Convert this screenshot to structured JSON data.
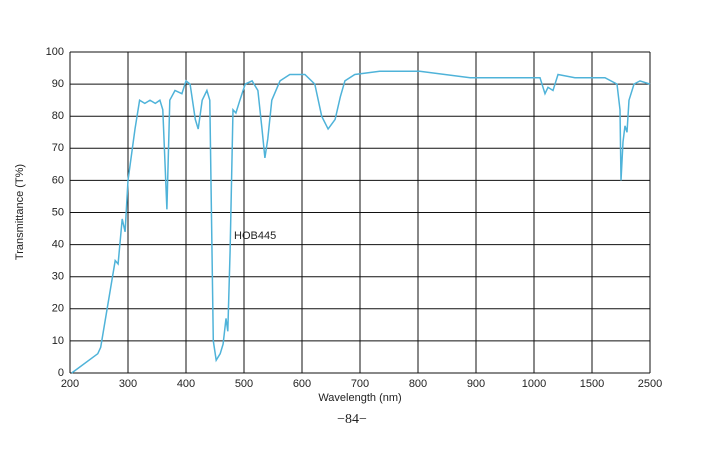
{
  "chart_data": {
    "type": "line",
    "xlabel": "Wavelength (nm)",
    "ylabel": "Transmittance (T%)",
    "annotation": "HOB445",
    "footer": "−84−",
    "xticks": [
      200,
      300,
      400,
      500,
      600,
      700,
      800,
      900,
      1000,
      1500,
      2500
    ],
    "xlim": [
      200,
      2500
    ],
    "ylim": [
      0,
      100
    ],
    "yticks": [
      0,
      10,
      20,
      30,
      40,
      50,
      60,
      70,
      80,
      90,
      100
    ],
    "grid": true,
    "series": [
      {
        "name": "HOB445",
        "color": "#4fb3d9",
        "x": [
          203,
          248,
          253,
          278,
          283,
          290,
          295,
          300,
          312,
          320,
          329,
          338,
          347,
          355,
          360,
          367,
          372,
          381,
          393,
          400,
          407,
          416,
          421,
          428,
          436,
          441,
          447,
          452,
          459,
          464,
          469,
          472,
          476,
          481,
          486,
          493,
          502,
          514,
          524,
          531,
          536,
          541,
          548,
          562,
          579,
          605,
          622,
          634,
          645,
          657,
          666,
          674,
          691,
          734,
          803,
          890,
          1052,
          1095,
          1121,
          1164,
          1207,
          1353,
          1483,
          1724,
          1931,
          1983,
          2000,
          2034,
          2069,
          2103,
          2138,
          2224,
          2328,
          2500
        ],
        "values": [
          0,
          6,
          8,
          35,
          34,
          48,
          44,
          60,
          76,
          85,
          84,
          85,
          84,
          85,
          82,
          51,
          85,
          88,
          87,
          91,
          90,
          79,
          76,
          85,
          88,
          85,
          10,
          4,
          6,
          9,
          17,
          13,
          38,
          82,
          81,
          85,
          90,
          91,
          88,
          76,
          67,
          73,
          85,
          91,
          93,
          93,
          90,
          80,
          76,
          79,
          86,
          91,
          93,
          94,
          94,
          92,
          92,
          87,
          89,
          88,
          93,
          92,
          92,
          92,
          90,
          82,
          60,
          72,
          77,
          75,
          85,
          90,
          91,
          90
        ]
      }
    ]
  }
}
